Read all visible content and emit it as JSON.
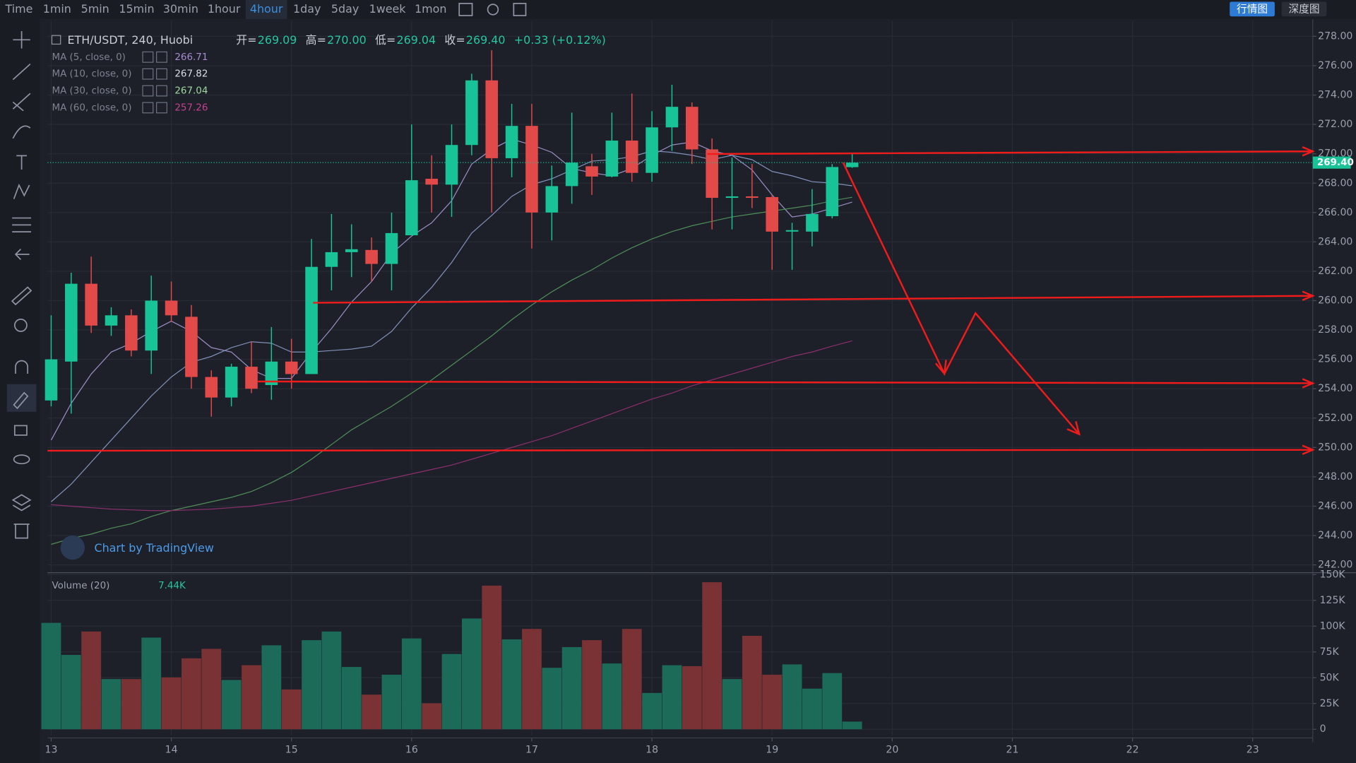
{
  "chart_data": {
    "type": "candlestick",
    "toolbar": [
      "Time",
      "1min",
      "5min",
      "15min",
      "30min",
      "1hour",
      "4hour",
      "1day",
      "5day",
      "1week",
      "1mon"
    ],
    "tabs": [
      "行情图",
      "深度图"
    ],
    "symbol": "ETH/USDT, 240, Huobi",
    "header_names": [
      "开=",
      "高=",
      "低=",
      "收="
    ],
    "header_labels": [
      "269.09",
      "270.00",
      "269.04",
      "269.40"
    ],
    "change": "+0.33 (+0.12%)",
    "watermark": "Chart by TradingView",
    "x": [
      13,
      13.1667,
      13.3333,
      13.5,
      13.6667,
      13.8333,
      14,
      14.1667,
      14.3333,
      14.5,
      14.6667,
      14.8333,
      15,
      15.1667,
      15.3333,
      15.5,
      15.6667,
      15.8333,
      16,
      16.1667,
      16.3333,
      16.5,
      16.6667,
      16.8333,
      17,
      17.1667,
      17.3333,
      17.5,
      17.6667,
      17.8333,
      18,
      18.1667,
      18.3333,
      18.5,
      18.6667,
      18.8333,
      19,
      19.1667,
      19.3333,
      19.5,
      19.6667
    ],
    "open": [
      253.2,
      255.85,
      261.15,
      258.3,
      259.0,
      256.6,
      260.0,
      258.9,
      254.8,
      253.4,
      255.5,
      254.25,
      255.85,
      255.0,
      262.3,
      263.3,
      263.45,
      262.5,
      264.45,
      268.3,
      267.9,
      270.6,
      275.0,
      269.7,
      271.9,
      266.0,
      267.8,
      269.15,
      268.45,
      270.9,
      268.7,
      271.8,
      273.2,
      270.3,
      267.0,
      267.1,
      267.05,
      264.7,
      264.7,
      265.75,
      269.09
    ],
    "high": [
      259.0,
      261.9,
      263.0,
      259.55,
      259.4,
      261.7,
      261.3,
      259.7,
      255.25,
      255.7,
      257.2,
      258.2,
      257.4,
      264.2,
      265.9,
      265.2,
      264.3,
      266.0,
      272.0,
      269.9,
      272.0,
      275.45,
      277.05,
      273.4,
      273.4,
      269.2,
      272.8,
      270.0,
      272.8,
      274.1,
      272.9,
      274.7,
      273.5,
      271.05,
      269.75,
      269.3,
      267.2,
      265.3,
      267.6,
      269.3,
      270.0
    ],
    "low": [
      252.8,
      252.3,
      257.8,
      257.6,
      256.2,
      255.0,
      258.55,
      254.0,
      252.1,
      252.8,
      253.7,
      253.25,
      254.0,
      255.0,
      260.7,
      261.6,
      261.3,
      260.7,
      264.45,
      266.0,
      265.7,
      269.9,
      266.0,
      268.4,
      263.55,
      264.1,
      266.6,
      267.2,
      268.4,
      268.1,
      268.1,
      270.2,
      269.3,
      264.85,
      264.85,
      266.3,
      262.1,
      262.1,
      263.7,
      265.6,
      269.04
    ],
    "close": [
      256.0,
      261.15,
      258.3,
      259.0,
      256.6,
      260.0,
      259.0,
      254.8,
      253.4,
      255.5,
      254.0,
      255.85,
      255.0,
      262.3,
      263.3,
      263.5,
      262.5,
      264.6,
      268.2,
      267.9,
      270.6,
      275.0,
      269.7,
      271.9,
      266.0,
      267.8,
      269.4,
      268.45,
      270.9,
      268.7,
      271.8,
      273.2,
      270.3,
      267.0,
      267.1,
      267.0,
      264.7,
      264.8,
      265.9,
      269.1,
      269.4
    ],
    "up_color": "#17c397",
    "down_color": "#e24949",
    "series": [
      {
        "name": "MA (5, close, 0)",
        "color": "#9a8dc4",
        "label_color": "#a88bd0",
        "values": [
          250.5,
          253.0,
          255.0,
          256.5,
          257.1,
          257.9,
          258.6,
          257.9,
          256.8,
          256.5,
          255.3,
          254.7,
          254.7,
          256.5,
          258.1,
          259.9,
          261.3,
          263.2,
          264.4,
          265.3,
          266.8,
          269.3,
          270.3,
          271.0,
          270.6,
          270.1,
          269.0,
          268.7,
          268.5,
          269.0,
          269.9,
          270.6,
          270.8,
          270.2,
          269.9,
          268.9,
          267.2,
          265.7,
          265.9,
          266.3,
          266.71
        ]
      },
      {
        "name": "MA (10, close, 0)",
        "color": "#8190b8",
        "label_color": "#d8dce8",
        "values": [
          246.3,
          247.5,
          249.0,
          250.5,
          252.0,
          253.5,
          254.8,
          255.8,
          256.2,
          256.8,
          257.2,
          257.1,
          256.5,
          256.5,
          256.6,
          256.7,
          256.9,
          257.9,
          259.5,
          260.9,
          262.6,
          264.6,
          265.8,
          267.1,
          267.9,
          268.3,
          268.9,
          269.5,
          269.6,
          269.8,
          270.2,
          270.1,
          269.9,
          269.6,
          269.9,
          269.6,
          268.8,
          268.5,
          268.1,
          268.0,
          267.82
        ]
      },
      {
        "name": "MA (30, close, 0)",
        "color": "#4f8e58",
        "label_color": "#9ed89e",
        "values": [
          243.4,
          243.8,
          244.1,
          244.5,
          244.8,
          245.3,
          245.7,
          246.0,
          246.3,
          246.6,
          247.0,
          247.6,
          248.3,
          249.2,
          250.2,
          251.2,
          252.0,
          252.8,
          253.7,
          254.6,
          255.6,
          256.6,
          257.6,
          258.7,
          259.7,
          260.6,
          261.4,
          262.1,
          262.9,
          263.6,
          264.2,
          264.7,
          265.1,
          265.4,
          265.7,
          265.9,
          266.1,
          266.3,
          266.5,
          266.8,
          267.04
        ]
      },
      {
        "name": "MA (60, close, 0)",
        "color": "#8c2f6e",
        "label_color": "#c4408f",
        "values": [
          246.1,
          246.0,
          245.9,
          245.8,
          245.75,
          245.7,
          245.7,
          245.75,
          245.8,
          245.9,
          246.0,
          246.2,
          246.4,
          246.7,
          247.0,
          247.3,
          247.6,
          247.9,
          248.2,
          248.5,
          248.8,
          249.2,
          249.6,
          250.0,
          250.4,
          250.8,
          251.3,
          251.8,
          252.3,
          252.8,
          253.3,
          253.7,
          254.2,
          254.6,
          255.0,
          255.4,
          255.8,
          256.2,
          256.5,
          256.9,
          257.26
        ]
      }
    ],
    "volume_name": "Volume (20)",
    "volume_last_label": "7.44K",
    "volume": [
      103200,
      72100,
      94800,
      48700,
      48700,
      88900,
      50300,
      68800,
      78000,
      47800,
      62100,
      81400,
      38600,
      86400,
      94800,
      60400,
      33600,
      52900,
      88100,
      25200,
      73000,
      107400,
      139300,
      87200,
      97300,
      59600,
      79700,
      86400,
      63800,
      97300,
      35200,
      62100,
      61200,
      142600,
      48700,
      90600,
      52900,
      62900,
      39400,
      54500,
      7440
    ],
    "volume_up_color": "#1c6b58",
    "volume_down_color": "#7a3234",
    "xlim": [
      12.97,
      23.5
    ],
    "xticks": [
      13,
      14,
      15,
      16,
      17,
      18,
      19,
      20,
      21,
      22,
      23
    ],
    "ylim": [
      241.53,
      279.06
    ],
    "yticks": [
      {
        "value": 242,
        "label": "242.00"
      },
      {
        "value": 244,
        "label": "244.00"
      },
      {
        "value": 246,
        "label": "246.00"
      },
      {
        "value": 248,
        "label": "248.00"
      },
      {
        "value": 250,
        "label": "250.00"
      },
      {
        "value": 252,
        "label": "252.00"
      },
      {
        "value": 254,
        "label": "254.00"
      },
      {
        "value": 256,
        "label": "256.00"
      },
      {
        "value": 258,
        "label": "258.00"
      },
      {
        "value": 260,
        "label": "260.00"
      },
      {
        "value": 262,
        "label": "262.00"
      },
      {
        "value": 264,
        "label": "264.00"
      },
      {
        "value": 266,
        "label": "266.00"
      },
      {
        "value": 268,
        "label": "268.00"
      },
      {
        "value": 270,
        "label": "270.00"
      },
      {
        "value": 272,
        "label": "272.00"
      },
      {
        "value": 274,
        "label": "274.00"
      },
      {
        "value": 276,
        "label": "276.00"
      },
      {
        "value": 278,
        "label": "278.00"
      }
    ],
    "vlim": [
      -5870,
      151000
    ],
    "vticks": [
      0,
      {
        "value": 25000,
        "label": "25K"
      },
      {
        "value": 50000,
        "label": "50K"
      },
      {
        "value": 75000,
        "label": "75K"
      },
      {
        "value": 100000,
        "label": "100K"
      },
      {
        "value": 125000,
        "label": "125K"
      },
      {
        "value": 150000,
        "label": "150K"
      }
    ],
    "grid": true
  }
}
